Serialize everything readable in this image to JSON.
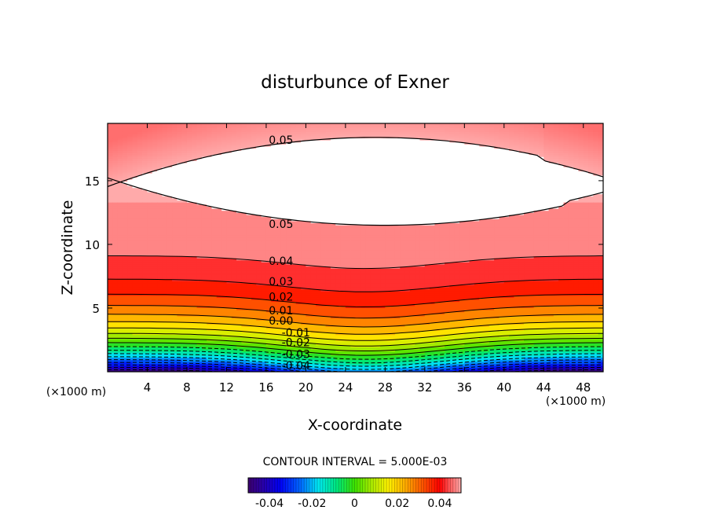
{
  "chart_data": {
    "type": "heatmap",
    "title": "disturbunce of Exner",
    "xlabel": "X-coordinate",
    "ylabel": "Z-coordinate",
    "x_unit_left": "(×1000 m)",
    "x_unit_right": "(×1000 m)",
    "xlim": [
      0,
      50
    ],
    "ylim": [
      0,
      19.5
    ],
    "x_ticks": [
      4,
      8,
      12,
      16,
      20,
      24,
      28,
      32,
      36,
      40,
      44,
      48
    ],
    "y_ticks": [
      5,
      10,
      15
    ],
    "contour_interval_label": "CONTOUR INTERVAL = 5.000E-03",
    "contour_interval": 0.005,
    "colorbar": {
      "range": [
        -0.05,
        0.05
      ],
      "ticks": [
        -0.04,
        -0.02,
        0,
        0.02,
        0.04
      ],
      "tick_labels": [
        "-0.04",
        "-0.02",
        "0",
        "0.02",
        "0.04"
      ]
    },
    "contour_labels": [
      {
        "text": "0.05",
        "x": 17.5,
        "y": 18.2
      },
      {
        "text": "0.05",
        "x": 17.5,
        "y": 11.6
      },
      {
        "text": "0.04",
        "x": 17.5,
        "y": 8.7
      },
      {
        "text": "0.03",
        "x": 17.5,
        "y": 7.1
      },
      {
        "text": "0.02",
        "x": 17.5,
        "y": 5.9
      },
      {
        "text": "0.01",
        "x": 17.5,
        "y": 4.8
      },
      {
        "text": "0.00",
        "x": 17.5,
        "y": 4.0
      },
      {
        "text": "-0.01",
        "x": 19.0,
        "y": 3.1
      },
      {
        "text": "-0.02",
        "x": 19.0,
        "y": 2.3
      },
      {
        "text": "-0.03",
        "x": 19.0,
        "y": 1.4
      },
      {
        "text": "-0.04",
        "x": 19.0,
        "y": 0.5
      }
    ],
    "upper_white_region_label": "0.05",
    "grid": false
  }
}
